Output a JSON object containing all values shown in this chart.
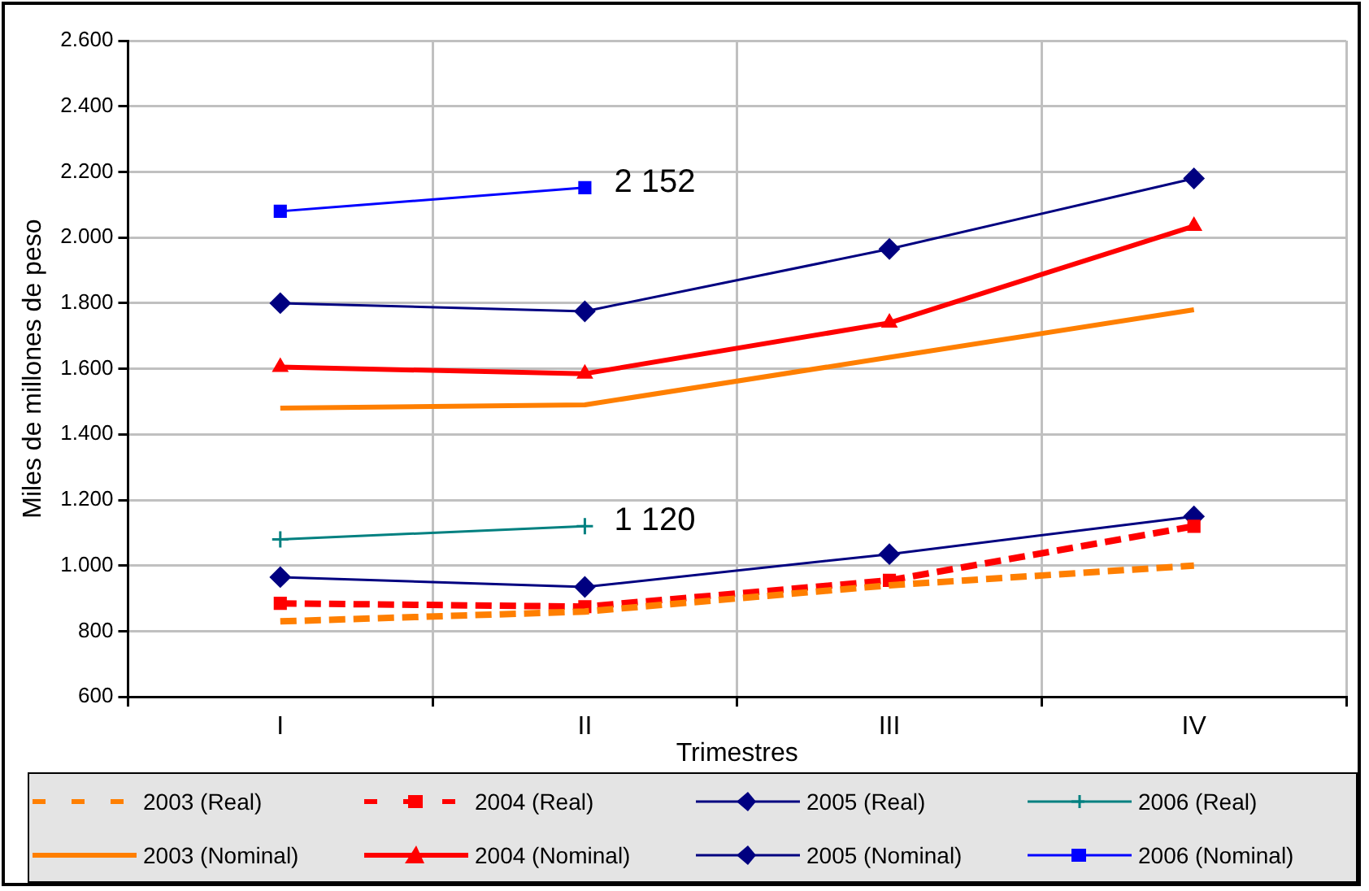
{
  "chart_data": {
    "type": "line",
    "xlabel": "Trimestres",
    "ylabel": "Miles de millones de peso",
    "categories": [
      "I",
      "II",
      "III",
      "IV"
    ],
    "series": [
      {
        "name": "2003 (Real)",
        "color": "#ff7f00",
        "values": [
          830,
          860,
          940,
          1000
        ],
        "marker": "none",
        "line_style": "dashed"
      },
      {
        "name": "2004 (Real)",
        "color": "#ff0000",
        "values": [
          885,
          875,
          955,
          1120
        ],
        "marker": "square",
        "line_style": "dashed"
      },
      {
        "name": "2005 (Real)",
        "color": "#000080",
        "values": [
          965,
          935,
          1035,
          1150
        ],
        "marker": "diamond",
        "line_style": "solid"
      },
      {
        "name": "2006 (Real)",
        "color": "#008080",
        "values": [
          1080,
          1120,
          null,
          null
        ],
        "marker": "cross",
        "line_style": "solid"
      },
      {
        "name": "2003 (Nominal)",
        "color": "#ff7f00",
        "values": [
          1480,
          1490,
          1635,
          1780
        ],
        "marker": "none",
        "line_style": "solid"
      },
      {
        "name": "2004 (Nominal)",
        "color": "#ff0000",
        "values": [
          1605,
          1585,
          1740,
          2035
        ],
        "marker": "triangle",
        "line_style": "solid"
      },
      {
        "name": "2005 (Nominal)",
        "color": "#000080",
        "values": [
          1800,
          1775,
          1965,
          2180
        ],
        "marker": "diamond",
        "line_style": "solid"
      },
      {
        "name": "2006 (Nominal)",
        "color": "#0000ff",
        "values": [
          2080,
          2152,
          null,
          null
        ],
        "marker": "square",
        "line_style": "solid"
      }
    ],
    "ylim": [
      600,
      2600
    ],
    "yticks": [
      600,
      800,
      {
        "value": 1000,
        "label": "1.000"
      },
      {
        "value": 1200,
        "label": "1.200"
      },
      {
        "value": 1400,
        "label": "1.400"
      },
      {
        "value": 1600,
        "label": "1.600"
      },
      {
        "value": 1800,
        "label": "1.800"
      },
      {
        "value": 2000,
        "label": "2.000"
      },
      {
        "value": 2200,
        "label": "2.200"
      },
      {
        "value": 2400,
        "label": "2.400"
      },
      {
        "value": 2600,
        "label": "2.600"
      }
    ],
    "annotations": [
      {
        "text": "2 152",
        "x": "II",
        "y": 2152
      },
      {
        "text": "1 120",
        "x": "II",
        "y": 1120
      }
    ],
    "grid": true,
    "legend": "bottom"
  }
}
